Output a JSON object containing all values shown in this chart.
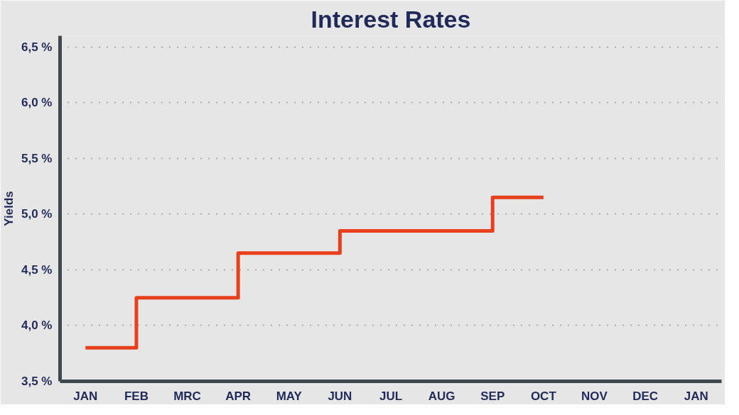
{
  "chart_data": {
    "type": "step",
    "title": "Interest Rates",
    "ylabel": "Yields",
    "categories": [
      "JAN",
      "FEB",
      "MRC",
      "APR",
      "MAY",
      "JUN",
      "JUL",
      "AUG",
      "SEP",
      "OCT",
      "NOV",
      "DEC",
      "JAN"
    ],
    "series": [
      {
        "color": "#e8401c",
        "values": [
          3.8,
          4.25,
          4.25,
          4.65,
          4.65,
          4.85,
          4.85,
          4.85,
          5.15,
          5.15,
          null,
          null,
          null
        ]
      }
    ],
    "ylim": [
      3.5,
      6.6
    ],
    "yticks": [
      {
        "value": 3.5,
        "label": "3,5 %"
      },
      {
        "value": 4.0,
        "label": "4,0 %"
      },
      {
        "value": 4.5,
        "label": "4,5 %"
      },
      {
        "value": 5.0,
        "label": "5,0 %"
      },
      {
        "value": 5.5,
        "label": "5,5 %"
      },
      {
        "value": 6.0,
        "label": "6,0 %"
      },
      {
        "value": 6.5,
        "label": "6,5 %"
      }
    ],
    "grid": "y",
    "marker": "none",
    "line_style": "solid"
  }
}
